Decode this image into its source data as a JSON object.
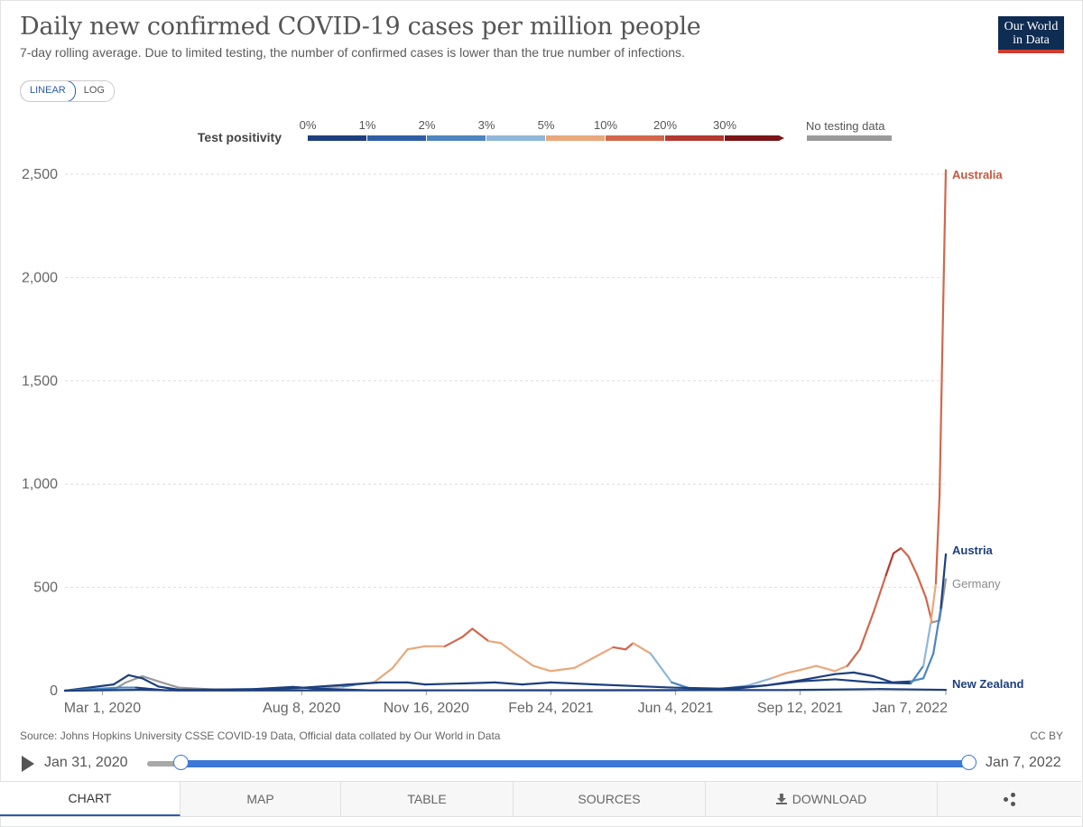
{
  "header": {
    "title": "Daily new confirmed COVID-19 cases per million people",
    "subtitle": "7-day rolling average. Due to limited testing, the number of confirmed cases is lower than the true number of infections.",
    "logo_line1": "Our World",
    "logo_line2": "in Data"
  },
  "scale_toggle": {
    "linear": "LINEAR",
    "log": "LOG",
    "active": "linear"
  },
  "legend": {
    "title": "Test positivity",
    "bins": [
      {
        "label": "0%",
        "color": "#1d3f7d"
      },
      {
        "label": "1%",
        "color": "#2f5ea5"
      },
      {
        "label": "2%",
        "color": "#4d85c0"
      },
      {
        "label": "3%",
        "color": "#8fb7da"
      },
      {
        "label": "5%",
        "color": "#e9a87c"
      },
      {
        "label": "10%",
        "color": "#d2674c"
      },
      {
        "label": "20%",
        "color": "#b33a31"
      },
      {
        "label": "30%",
        "color": "#7b1518"
      }
    ],
    "no_data_label": "No testing data",
    "no_data_color": "#9a9a9a"
  },
  "chart_data": {
    "type": "line",
    "y_axis": {
      "min": 0,
      "max": 2500,
      "ticks": [
        0,
        500,
        1000,
        1500,
        2000,
        2500
      ],
      "tick_labels": [
        "0",
        "500",
        "1,000",
        "1,500",
        "2,000",
        "2,500"
      ],
      "grid": true
    },
    "x_axis": {
      "start": "2020-01-31",
      "end": "2022-01-07",
      "ticks": [
        {
          "date": "2020-03-01",
          "label": "Mar 1, 2020"
        },
        {
          "date": "2020-08-08",
          "label": "Aug 8, 2020"
        },
        {
          "date": "2020-11-16",
          "label": "Nov 16, 2020"
        },
        {
          "date": "2021-02-24",
          "label": "Feb 24, 2021"
        },
        {
          "date": "2021-06-04",
          "label": "Jun 4, 2021"
        },
        {
          "date": "2021-09-12",
          "label": "Sep 12, 2021"
        },
        {
          "date": "2022-01-07",
          "label": "Jan 7, 2022"
        }
      ]
    },
    "series": [
      {
        "name": "Germany",
        "label_color": "#8a8a8a",
        "points": [
          [
            "2020-01-31",
            0,
            "#9a9a9a"
          ],
          [
            "2020-03-10",
            5,
            "#9a9a9a"
          ],
          [
            "2020-03-20",
            40,
            "#9a9a9a"
          ],
          [
            "2020-04-02",
            70,
            "#9a9a9a"
          ],
          [
            "2020-04-15",
            45,
            "#9a9a9a"
          ],
          [
            "2020-05-01",
            15,
            "#9a9a9a"
          ],
          [
            "2020-06-01",
            5,
            "#9a9a9a"
          ],
          [
            "2020-07-15",
            5,
            "#9a9a9a"
          ],
          [
            "2020-08-15",
            15,
            "#9a9a9a"
          ],
          [
            "2020-09-10",
            20,
            "#9a9a9a"
          ],
          [
            "2020-09-20",
            28,
            "#4d85c0"
          ],
          [
            "2020-10-05",
            40,
            "#8fb7da"
          ],
          [
            "2020-10-20",
            110,
            "#e9a87c"
          ],
          [
            "2020-11-01",
            200,
            "#e9a87c"
          ],
          [
            "2020-11-15",
            215,
            "#e9a87c"
          ],
          [
            "2020-12-01",
            215,
            "#e9a87c"
          ],
          [
            "2020-12-15",
            260,
            "#d2674c"
          ],
          [
            "2020-12-23",
            300,
            "#d2674c"
          ],
          [
            "2021-01-05",
            240,
            "#d2674c"
          ],
          [
            "2021-01-15",
            230,
            "#e9a87c"
          ],
          [
            "2021-01-25",
            185,
            "#e9a87c"
          ],
          [
            "2021-02-10",
            120,
            "#e9a87c"
          ],
          [
            "2021-02-24",
            95,
            "#e9a87c"
          ],
          [
            "2021-03-15",
            110,
            "#e9a87c"
          ],
          [
            "2021-04-01",
            165,
            "#e9a87c"
          ],
          [
            "2021-04-15",
            210,
            "#e9a87c"
          ],
          [
            "2021-04-25",
            200,
            "#d2674c"
          ],
          [
            "2021-05-01",
            230,
            "#d2674c"
          ],
          [
            "2021-05-15",
            180,
            "#e9a87c"
          ],
          [
            "2021-06-01",
            40,
            "#8fb7da"
          ],
          [
            "2021-06-15",
            12,
            "#4d85c0"
          ],
          [
            "2021-07-10",
            8,
            "#4d85c0"
          ],
          [
            "2021-08-01",
            25,
            "#8fb7da"
          ],
          [
            "2021-08-20",
            60,
            "#8fb7da"
          ],
          [
            "2021-09-01",
            85,
            "#e9a87c"
          ],
          [
            "2021-09-12",
            100,
            "#e9a87c"
          ],
          [
            "2021-09-25",
            120,
            "#e9a87c"
          ],
          [
            "2021-10-10",
            95,
            "#e9a87c"
          ],
          [
            "2021-10-20",
            120,
            "#e9a87c"
          ],
          [
            "2021-10-30",
            200,
            "#d2674c"
          ],
          [
            "2021-11-10",
            380,
            "#d2674c"
          ],
          [
            "2021-11-20",
            560,
            "#d2674c"
          ],
          [
            "2021-11-26",
            665,
            "#b33a31"
          ],
          [
            "2021-12-02",
            690,
            "#b33a31"
          ],
          [
            "2021-12-08",
            650,
            "#d2674c"
          ],
          [
            "2021-12-15",
            560,
            "#d2674c"
          ],
          [
            "2021-12-22",
            450,
            "#d2674c"
          ],
          [
            "2021-12-27",
            330,
            "#d2674c"
          ],
          [
            "2022-01-02",
            340,
            "#9a9a9a"
          ],
          [
            "2022-01-07",
            540,
            "#9a9a9a"
          ]
        ]
      },
      {
        "name": "Austria",
        "label_color": "#1d3f7d",
        "points": [
          [
            "2020-01-31",
            0,
            "#4d85c0"
          ],
          [
            "2020-03-10",
            30,
            "#1d3f7d"
          ],
          [
            "2020-03-22",
            75,
            "#1d3f7d"
          ],
          [
            "2020-04-02",
            60,
            "#1d3f7d"
          ],
          [
            "2020-04-15",
            20,
            "#1d3f7d"
          ],
          [
            "2020-05-01",
            5,
            "#1d3f7d"
          ],
          [
            "2020-07-01",
            5,
            "#1d3f7d"
          ],
          [
            "2020-08-10",
            15,
            "#1d3f7d"
          ],
          [
            "2020-09-15",
            30,
            "#1d3f7d"
          ],
          [
            "2020-10-10",
            40,
            "#1d3f7d"
          ],
          [
            "2020-11-01",
            40,
            "#1d3f7d"
          ],
          [
            "2020-11-15",
            30,
            "#1d3f7d"
          ],
          [
            "2020-12-15",
            35,
            "#1d3f7d"
          ],
          [
            "2021-01-10",
            40,
            "#1d3f7d"
          ],
          [
            "2021-02-01",
            30,
            "#1d3f7d"
          ],
          [
            "2021-02-24",
            40,
            "#1d3f7d"
          ],
          [
            "2021-04-01",
            30,
            "#1d3f7d"
          ],
          [
            "2021-06-01",
            15,
            "#1d3f7d"
          ],
          [
            "2021-07-10",
            10,
            "#1d3f7d"
          ],
          [
            "2021-08-15",
            25,
            "#1d3f7d"
          ],
          [
            "2021-09-12",
            50,
            "#1d3f7d"
          ],
          [
            "2021-10-10",
            80,
            "#1d3f7d"
          ],
          [
            "2021-10-25",
            88,
            "#1d3f7d"
          ],
          [
            "2021-11-10",
            70,
            "#1d3f7d"
          ],
          [
            "2021-11-25",
            40,
            "#1d3f7d"
          ],
          [
            "2021-12-10",
            45,
            "#1d3f7d"
          ],
          [
            "2021-12-20",
            60,
            "#4d85c0"
          ],
          [
            "2021-12-28",
            180,
            "#4d85c0"
          ],
          [
            "2022-01-03",
            400,
            "#4d85c0"
          ],
          [
            "2022-01-07",
            660,
            "#1d3f7d"
          ]
        ]
      },
      {
        "name": "Australia",
        "label_color": "#c8563e",
        "points": [
          [
            "2020-01-31",
            0,
            "#1d3f7d"
          ],
          [
            "2020-03-15",
            15,
            "#4d85c0"
          ],
          [
            "2020-03-28",
            15,
            "#4d85c0"
          ],
          [
            "2020-04-20",
            2,
            "#1d3f7d"
          ],
          [
            "2020-07-01",
            8,
            "#1d3f7d"
          ],
          [
            "2020-08-01",
            18,
            "#1d3f7d"
          ],
          [
            "2020-08-20",
            10,
            "#1d3f7d"
          ],
          [
            "2020-10-01",
            2,
            "#1d3f7d"
          ],
          [
            "2021-06-01",
            2,
            "#1d3f7d"
          ],
          [
            "2021-07-15",
            5,
            "#1d3f7d"
          ],
          [
            "2021-08-15",
            25,
            "#1d3f7d"
          ],
          [
            "2021-09-12",
            45,
            "#1d3f7d"
          ],
          [
            "2021-10-10",
            55,
            "#1d3f7d"
          ],
          [
            "2021-11-10",
            40,
            "#1d3f7d"
          ],
          [
            "2021-12-10",
            35,
            "#1d3f7d"
          ],
          [
            "2021-12-20",
            120,
            "#4d85c0"
          ],
          [
            "2021-12-26",
            330,
            "#8fb7da"
          ],
          [
            "2021-12-30",
            520,
            "#e9a87c"
          ],
          [
            "2022-01-02",
            950,
            "#d2674c"
          ],
          [
            "2022-01-05",
            1900,
            "#d2674c"
          ],
          [
            "2022-01-07",
            2520,
            "#d2674c"
          ]
        ]
      },
      {
        "name": "New Zealand",
        "label_color": "#1d3f7d",
        "points": [
          [
            "2020-01-31",
            0,
            "#1d3f7d"
          ],
          [
            "2020-04-01",
            4,
            "#1d3f7d"
          ],
          [
            "2020-05-01",
            1,
            "#1d3f7d"
          ],
          [
            "2021-09-01",
            3,
            "#1d3f7d"
          ],
          [
            "2021-11-15",
            8,
            "#1d3f7d"
          ],
          [
            "2022-01-07",
            4,
            "#1d3f7d"
          ]
        ]
      }
    ]
  },
  "footer": {
    "source": "Source: Johns Hopkins University CSSE COVID-19 Data, Official data collated by Our World in Data",
    "license": "CC BY"
  },
  "timeline": {
    "start_label": "Jan 31, 2020",
    "end_label": "Jan 7, 2022"
  },
  "tabs": [
    {
      "id": "chart",
      "label": "CHART",
      "active": true
    },
    {
      "id": "map",
      "label": "MAP",
      "active": false
    },
    {
      "id": "table",
      "label": "TABLE",
      "active": false
    },
    {
      "id": "sources",
      "label": "SOURCES",
      "active": false
    },
    {
      "id": "download",
      "label": "DOWNLOAD",
      "active": false
    },
    {
      "id": "share",
      "label": "",
      "active": false
    }
  ]
}
